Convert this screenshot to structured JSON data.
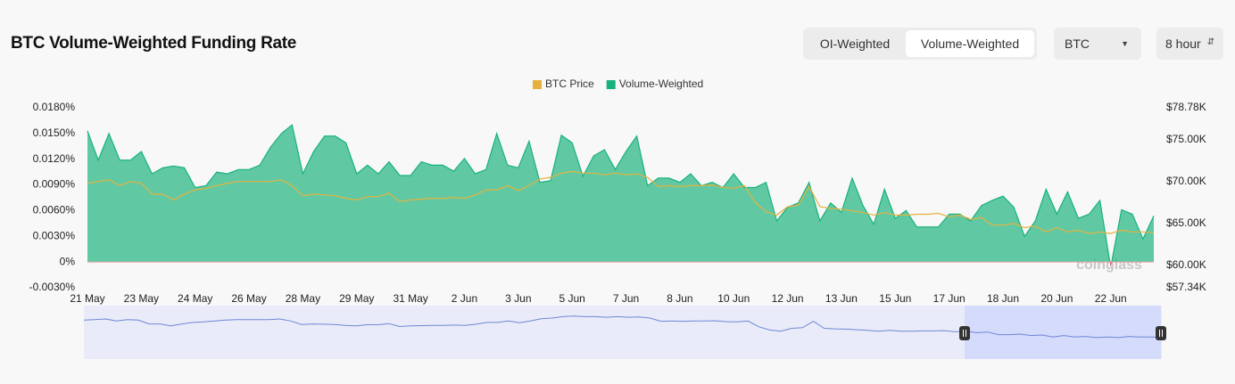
{
  "header": {
    "title": "BTC Volume-Weighted Funding Rate",
    "tabs": [
      "OI-Weighted",
      "Volume-Weighted"
    ],
    "coin": "BTC",
    "interval": "8 hour"
  },
  "chart_data": {
    "type": "area",
    "watermark": "coinglass",
    "legend": "top",
    "categories": [
      "21 May",
      null,
      null,
      null,
      null,
      "23 May",
      null,
      null,
      null,
      null,
      "24 May",
      null,
      null,
      null,
      null,
      "26 May",
      null,
      null,
      null,
      null,
      "28 May",
      null,
      null,
      null,
      null,
      "29 May",
      null,
      null,
      null,
      null,
      "31 May",
      null,
      null,
      null,
      null,
      "2 Jun",
      null,
      null,
      null,
      null,
      "3 Jun",
      null,
      null,
      null,
      null,
      "5 Jun",
      null,
      null,
      null,
      null,
      "7 Jun",
      null,
      null,
      null,
      null,
      "8 Jun",
      null,
      null,
      null,
      null,
      "10 Jun",
      null,
      null,
      null,
      null,
      "12 Jun",
      null,
      null,
      null,
      null,
      "13 Jun",
      null,
      null,
      null,
      null,
      "15 Jun",
      null,
      null,
      null,
      null,
      "17 Jun",
      null,
      null,
      null,
      null,
      "18 Jun",
      null,
      null,
      null,
      null,
      "20 Jun",
      null,
      null,
      null,
      null,
      "22 Jun",
      null,
      null,
      null,
      null
    ],
    "series": [
      {
        "name": "BTC Price",
        "type": "line",
        "axis": "y2",
        "color": "#e6b13d",
        "values": [
          69800,
          70000,
          70200,
          69500,
          70000,
          69800,
          68500,
          68500,
          67800,
          68500,
          69000,
          69200,
          69500,
          69800,
          70000,
          70000,
          70000,
          70000,
          70200,
          69500,
          68300,
          68500,
          68400,
          68300,
          68000,
          67800,
          68200,
          68200,
          68600,
          67600,
          67800,
          67900,
          68000,
          68000,
          68100,
          68000,
          68400,
          69000,
          69000,
          69500,
          68900,
          69500,
          70300,
          70500,
          71000,
          71200,
          71000,
          71000,
          70800,
          71000,
          70800,
          70900,
          70500,
          69400,
          69500,
          69400,
          69500,
          69500,
          69600,
          69300,
          69200,
          69500,
          67500,
          66400,
          66000,
          67000,
          67200,
          69400,
          67000,
          66800,
          66700,
          66500,
          66300,
          66000,
          66300,
          66000,
          66000,
          66100,
          66100,
          66200,
          65800,
          66000,
          65500,
          65700,
          64800,
          64800,
          65000,
          64500,
          64700,
          64000,
          64500,
          64000,
          64200,
          63800,
          64000,
          63800,
          64200,
          64000,
          64000,
          63900
        ]
      },
      {
        "name": "Volume-Weighted",
        "type": "area",
        "color": "#17b27c",
        "negative_color": "#e2475f",
        "values": [
          0.0153,
          0.0119,
          0.015,
          0.0119,
          0.0119,
          0.0129,
          0.0103,
          0.011,
          0.0112,
          0.011,
          0.0087,
          0.0089,
          0.0105,
          0.0103,
          0.0108,
          0.0108,
          0.0113,
          0.0134,
          0.015,
          0.016,
          0.0103,
          0.0129,
          0.0147,
          0.0147,
          0.0139,
          0.0103,
          0.0113,
          0.0103,
          0.0117,
          0.0101,
          0.0101,
          0.0117,
          0.0113,
          0.0113,
          0.0106,
          0.0121,
          0.0103,
          0.0108,
          0.015,
          0.0113,
          0.011,
          0.0141,
          0.0093,
          0.0095,
          0.0148,
          0.0139,
          0.01,
          0.0124,
          0.0131,
          0.0108,
          0.0129,
          0.0147,
          0.0089,
          0.0098,
          0.0098,
          0.0093,
          0.0103,
          0.0089,
          0.0093,
          0.0087,
          0.0103,
          0.0087,
          0.0087,
          0.0093,
          0.0048,
          0.0064,
          0.0069,
          0.0093,
          0.0048,
          0.0069,
          0.0058,
          0.0098,
          0.0066,
          0.0044,
          0.0085,
          0.0051,
          0.006,
          0.0041,
          0.0041,
          0.0041,
          0.0056,
          0.0056,
          0.0048,
          0.0066,
          0.0072,
          0.0077,
          0.0064,
          0.003,
          0.0048,
          0.0085,
          0.0056,
          0.0082,
          0.0051,
          0.0056,
          0.0072,
          -0.0006,
          0.0061,
          0.0056,
          0.0027,
          0.0054
        ]
      }
    ],
    "ylim": [
      -0.003,
      0.018
    ],
    "yticks": [
      {
        "value": -0.003,
        "label": "-0.0030%"
      },
      {
        "value": 0,
        "label": "0%"
      },
      {
        "value": 0.003,
        "label": "0.0030%"
      },
      {
        "value": 0.006,
        "label": "0.0060%"
      },
      {
        "value": 0.009,
        "label": "0.0090%"
      },
      {
        "value": 0.012,
        "label": "0.0120%"
      },
      {
        "value": 0.015,
        "label": "0.0150%"
      },
      {
        "value": 0.018,
        "label": "0.0180%"
      }
    ],
    "y2lim": [
      57340,
      78780
    ],
    "y2ticks": [
      {
        "value": 57340,
        "label": "$57.34K"
      },
      {
        "value": 60000,
        "label": "$60.00K"
      },
      {
        "value": 65000,
        "label": "$65.00K"
      },
      {
        "value": 70000,
        "label": "$70.00K"
      },
      {
        "value": 75000,
        "label": "$75.00K"
      },
      {
        "value": 78780,
        "label": "$78.78K"
      }
    ],
    "grid": false
  }
}
